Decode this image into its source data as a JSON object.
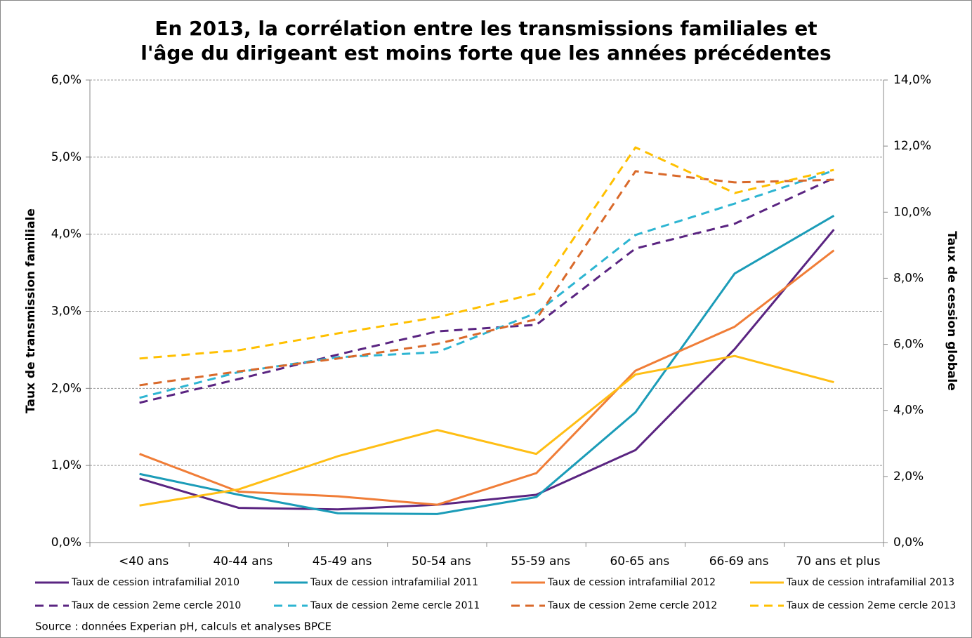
{
  "chart_data": {
    "type": "line",
    "title": [
      "En 2013, la corrélation entre les transmissions familiales et",
      "l'âge du dirigeant est moins forte que les années précédentes"
    ],
    "y_label": "Taux de transmission familiale",
    "y2_label": "Taux de cession globale",
    "source": "Source : données Experian pH, calculs et analyses BPCE",
    "categories": [
      "<40 ans",
      "40-44 ans",
      "45-49 ans",
      "50-54 ans",
      "55-59 ans",
      "60-65 ans",
      "66-69 ans",
      "70 ans et plus"
    ],
    "ylim": [
      0,
      6
    ],
    "yticks": [
      {
        "value": 0,
        "label": "0,0%"
      },
      {
        "value": 1,
        "label": "1,0%"
      },
      {
        "value": 2,
        "label": "2,0%"
      },
      {
        "value": 3,
        "label": "3,0%"
      },
      {
        "value": 4,
        "label": "4,0%"
      },
      {
        "value": 5,
        "label": "5,0%"
      },
      {
        "value": 6,
        "label": "6,0%"
      }
    ],
    "y2lim": [
      0,
      14
    ],
    "y2ticks": [
      {
        "value": 0,
        "label": "0,0%"
      },
      {
        "value": 2,
        "label": "2,0%"
      },
      {
        "value": 4,
        "label": "4,0%"
      },
      {
        "value": 6,
        "label": "6,0%"
      },
      {
        "value": 8,
        "label": "8,0%"
      },
      {
        "value": 10,
        "label": "10,0%"
      },
      {
        "value": 12,
        "label": "12,0%"
      },
      {
        "value": 14,
        "label": "14,0%"
      }
    ],
    "grid": true,
    "legend": "bottom",
    "series": [
      {
        "name": "Taux de cession intrafamilial 2010",
        "color": "#5a2481",
        "line_style": "solid",
        "values": [
          0.83,
          0.45,
          0.43,
          0.49,
          0.62,
          1.2,
          2.51,
          4.06
        ]
      },
      {
        "name": "Taux de cession intrafamilial 2011",
        "color": "#1b9cb8",
        "line_style": "solid",
        "values": [
          0.89,
          0.62,
          0.38,
          0.37,
          0.59,
          1.69,
          3.49,
          4.24
        ]
      },
      {
        "name": "Taux de cession intrafamilial 2012",
        "color": "#f07d37",
        "line_style": "solid",
        "values": [
          1.15,
          0.66,
          0.6,
          0.49,
          0.9,
          2.23,
          2.8,
          3.79
        ]
      },
      {
        "name": "Taux de cession intrafamilial 2013",
        "color": "#ffbe14",
        "line_style": "solid",
        "values": [
          0.48,
          0.69,
          1.12,
          1.46,
          1.15,
          2.18,
          2.42,
          2.08
        ]
      },
      {
        "name": "Taux de cession 2eme cercle 2010",
        "color": "#5a2481",
        "line_style": "dashed",
        "axis": "y2",
        "values": [
          4.23,
          4.95,
          5.69,
          6.39,
          6.59,
          8.9,
          9.65,
          11.03
        ]
      },
      {
        "name": "Taux de cession 2eme cercle 2011",
        "color": "#2db5d2",
        "line_style": "dashed",
        "axis": "y2",
        "values": [
          4.38,
          5.16,
          5.61,
          5.76,
          6.95,
          9.31,
          10.26,
          11.26
        ]
      },
      {
        "name": "Taux de cession 2eme cercle 2012",
        "color": "#d9692a",
        "line_style": "dashed",
        "axis": "y2",
        "values": [
          4.76,
          5.18,
          5.57,
          6.01,
          6.76,
          11.24,
          10.9,
          10.98
        ]
      },
      {
        "name": "Taux de cession 2eme cercle 2013",
        "color": "#ffc000",
        "line_style": "dashed",
        "axis": "y2",
        "values": [
          5.57,
          5.82,
          6.33,
          6.82,
          7.54,
          11.96,
          10.58,
          11.28
        ]
      }
    ]
  }
}
